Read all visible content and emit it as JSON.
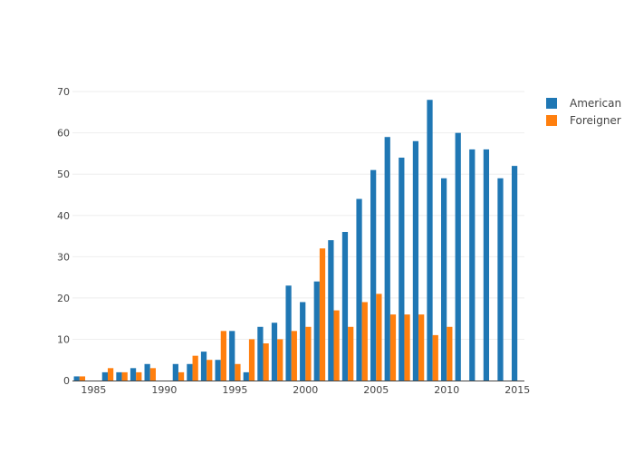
{
  "chart_data": {
    "type": "bar",
    "x": [
      1984,
      1985,
      1986,
      1987,
      1988,
      1989,
      1990,
      1991,
      1992,
      1993,
      1994,
      1995,
      1996,
      1997,
      1998,
      1999,
      2000,
      2001,
      2002,
      2003,
      2004,
      2005,
      2006,
      2007,
      2008,
      2009,
      2010,
      2011,
      2012,
      2013,
      2014,
      2015
    ],
    "series": [
      {
        "name": "American",
        "color": "#1f77b4",
        "values": [
          1,
          0,
          2,
          2,
          3,
          4,
          0,
          4,
          4,
          7,
          5,
          12,
          2,
          13,
          14,
          23,
          19,
          24,
          34,
          36,
          44,
          51,
          59,
          54,
          58,
          68,
          49,
          60,
          56,
          56,
          49,
          52
        ]
      },
      {
        "name": "Foreigner",
        "color": "#ff7f0e",
        "values": [
          1,
          0,
          3,
          2,
          2,
          3,
          0,
          2,
          6,
          5,
          12,
          4,
          10,
          9,
          10,
          12,
          13,
          32,
          17,
          13,
          19,
          21,
          16,
          16,
          16,
          11,
          13,
          0,
          0,
          0,
          0,
          0
        ]
      }
    ],
    "xticks": [
      1985,
      1990,
      1995,
      2000,
      2005,
      2010,
      2015
    ],
    "yticks": [
      0,
      10,
      20,
      30,
      40,
      50,
      60,
      70
    ],
    "xlim": [
      1983.5,
      2015.5
    ],
    "ylim": [
      0,
      72
    ],
    "grid": true,
    "legend_position": "top-right"
  }
}
